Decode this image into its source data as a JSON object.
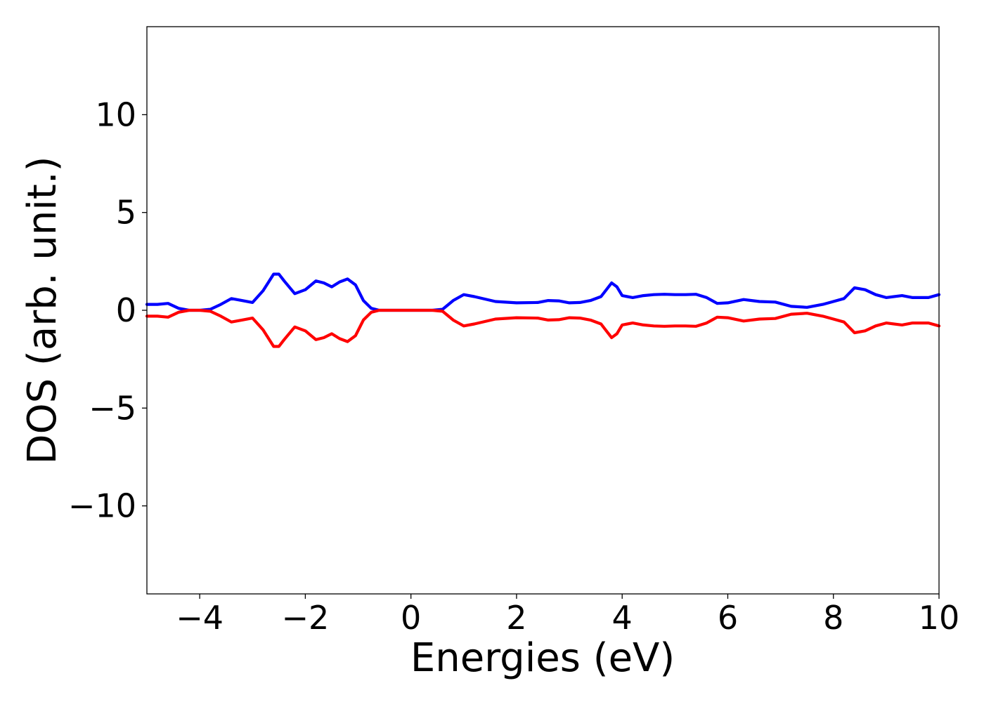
{
  "chart_data": {
    "type": "line",
    "title": "",
    "xlabel": "Energies (eV)",
    "ylabel": "DOS (arb. unit.)",
    "xlim": [
      -5,
      10
    ],
    "ylim": [
      -14.5,
      14.5
    ],
    "xticks": [
      -4,
      -2,
      0,
      2,
      4,
      6,
      8,
      10
    ],
    "xtick_labels": [
      "−4",
      "−2",
      "0",
      "2",
      "4",
      "6",
      "8",
      "10"
    ],
    "yticks": [
      -10,
      -5,
      0,
      5,
      10
    ],
    "ytick_labels": [
      "−10",
      "−5",
      "0",
      "5",
      "10"
    ],
    "grid": false,
    "legend": "none",
    "series": [
      {
        "color": "#0000ff",
        "x": [
          -5.0,
          -4.8,
          -4.6,
          -4.4,
          -4.2,
          -4.0,
          -3.8,
          -3.6,
          -3.4,
          -3.2,
          -3.0,
          -2.8,
          -2.6,
          -2.5,
          -2.4,
          -2.2,
          -2.0,
          -1.8,
          -1.65,
          -1.5,
          -1.35,
          -1.2,
          -1.05,
          -0.9,
          -0.75,
          -0.6,
          -0.4,
          0.0,
          0.4,
          0.6,
          0.8,
          1.0,
          1.2,
          1.6,
          2.0,
          2.4,
          2.6,
          2.8,
          3.0,
          3.2,
          3.4,
          3.6,
          3.8,
          3.9,
          4.0,
          4.2,
          4.4,
          4.6,
          4.8,
          5.0,
          5.2,
          5.4,
          5.6,
          5.8,
          6.0,
          6.3,
          6.6,
          6.9,
          7.2,
          7.5,
          7.8,
          8.0,
          8.2,
          8.4,
          8.6,
          8.8,
          9.0,
          9.3,
          9.5,
          9.8,
          10.0
        ],
        "y": [
          0.3,
          0.3,
          0.35,
          0.1,
          0.0,
          0.0,
          0.05,
          0.3,
          0.6,
          0.5,
          0.4,
          1.0,
          1.85,
          1.85,
          1.5,
          0.85,
          1.05,
          1.5,
          1.4,
          1.2,
          1.45,
          1.6,
          1.3,
          0.5,
          0.1,
          0.0,
          0.0,
          0.0,
          0.0,
          0.05,
          0.5,
          0.8,
          0.7,
          0.45,
          0.38,
          0.4,
          0.5,
          0.48,
          0.38,
          0.4,
          0.5,
          0.7,
          1.4,
          1.2,
          0.75,
          0.65,
          0.75,
          0.8,
          0.82,
          0.8,
          0.8,
          0.82,
          0.65,
          0.35,
          0.38,
          0.55,
          0.45,
          0.42,
          0.2,
          0.15,
          0.3,
          0.45,
          0.6,
          1.15,
          1.05,
          0.8,
          0.65,
          0.75,
          0.65,
          0.65,
          0.8
        ]
      },
      {
        "color": "#ff0000",
        "x": [
          -5.0,
          -4.8,
          -4.6,
          -4.4,
          -4.2,
          -4.0,
          -3.8,
          -3.6,
          -3.4,
          -3.2,
          -3.0,
          -2.8,
          -2.6,
          -2.5,
          -2.4,
          -2.2,
          -2.0,
          -1.8,
          -1.65,
          -1.5,
          -1.35,
          -1.2,
          -1.05,
          -0.9,
          -0.75,
          -0.6,
          -0.4,
          0.0,
          0.4,
          0.6,
          0.8,
          1.0,
          1.2,
          1.6,
          2.0,
          2.4,
          2.6,
          2.8,
          3.0,
          3.2,
          3.4,
          3.6,
          3.8,
          3.9,
          4.0,
          4.2,
          4.4,
          4.6,
          4.8,
          5.0,
          5.2,
          5.4,
          5.6,
          5.8,
          6.0,
          6.3,
          6.6,
          6.9,
          7.2,
          7.5,
          7.8,
          8.0,
          8.2,
          8.4,
          8.6,
          8.8,
          9.0,
          9.3,
          9.5,
          9.8,
          10.0
        ],
        "y": [
          -0.3,
          -0.3,
          -0.35,
          -0.1,
          0.0,
          0.0,
          -0.05,
          -0.3,
          -0.6,
          -0.5,
          -0.4,
          -1.0,
          -1.85,
          -1.85,
          -1.5,
          -0.85,
          -1.05,
          -1.5,
          -1.4,
          -1.2,
          -1.45,
          -1.6,
          -1.3,
          -0.5,
          -0.1,
          0.0,
          0.0,
          0.0,
          0.0,
          -0.05,
          -0.5,
          -0.8,
          -0.7,
          -0.45,
          -0.38,
          -0.4,
          -0.5,
          -0.48,
          -0.38,
          -0.4,
          -0.5,
          -0.7,
          -1.4,
          -1.2,
          -0.75,
          -0.65,
          -0.75,
          -0.8,
          -0.82,
          -0.8,
          -0.8,
          -0.82,
          -0.65,
          -0.35,
          -0.38,
          -0.55,
          -0.45,
          -0.42,
          -0.2,
          -0.15,
          -0.3,
          -0.45,
          -0.6,
          -1.15,
          -1.05,
          -0.8,
          -0.65,
          -0.75,
          -0.65,
          -0.65,
          -0.8
        ]
      }
    ]
  }
}
